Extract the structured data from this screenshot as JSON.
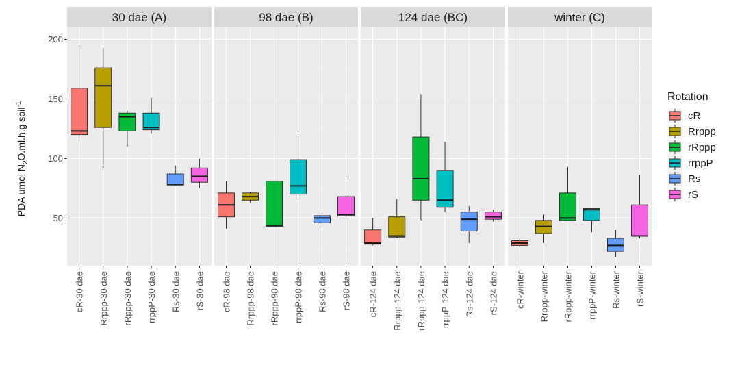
{
  "chart_data": {
    "type": "boxplot",
    "ylabel_parts": {
      "text1": "PDA  umol N",
      "sub1": "2",
      "text2": "O.ml.h.g soil",
      "sup1": "-1"
    },
    "ylim": [
      10,
      210
    ],
    "yticks": [
      50,
      100,
      150,
      200
    ],
    "legend": {
      "title": "Rotation",
      "position": "right",
      "entries": [
        {
          "label": "cR",
          "color": "#F8766D"
        },
        {
          "label": "Rrppp",
          "color": "#B79F00"
        },
        {
          "label": "rRppp",
          "color": "#00BA38"
        },
        {
          "label": "rrppP",
          "color": "#00BFC4"
        },
        {
          "label": "Rs",
          "color": "#619CFF"
        },
        {
          "label": "rS",
          "color": "#F564E3"
        }
      ]
    },
    "facets": [
      {
        "title": "30 dae (A)",
        "categories": [
          "cR-30 dae",
          "Rrppp-30 dae",
          "rRppp-30 dae",
          "rrppP-30 dae",
          "Rs-30 dae",
          "rS-30 dae"
        ],
        "boxes": [
          {
            "min": 117,
            "q1": 120,
            "median": 123,
            "q3": 159,
            "max": 196
          },
          {
            "min": 92,
            "q1": 126,
            "median": 161,
            "q3": 176,
            "max": 193
          },
          {
            "min": 110,
            "q1": 123,
            "median": 135,
            "q3": 138,
            "max": 140
          },
          {
            "min": 121,
            "q1": 124,
            "median": 126,
            "q3": 138,
            "max": 151
          },
          {
            "min": 77,
            "q1": 78,
            "median": 78,
            "q3": 87,
            "max": 94
          },
          {
            "min": 75,
            "q1": 80,
            "median": 85,
            "q3": 92,
            "max": 100
          }
        ]
      },
      {
        "title": "98 dae (B)",
        "categories": [
          "cR-98 dae",
          "Rrppp-98 dae",
          "rRppp-98 dae",
          "rrppP-98 dae",
          "Rs-98 dae",
          "rS-98 dae"
        ],
        "boxes": [
          {
            "min": 41,
            "q1": 51,
            "median": 61,
            "q3": 71,
            "max": 81
          },
          {
            "min": 63,
            "q1": 65,
            "median": 68,
            "q3": 71,
            "max": 72
          },
          {
            "min": 43,
            "q1": 43,
            "median": 44,
            "q3": 81,
            "max": 118
          },
          {
            "min": 65,
            "q1": 70,
            "median": 77,
            "q3": 99,
            "max": 121
          },
          {
            "min": 43,
            "q1": 46,
            "median": 50,
            "q3": 52,
            "max": 54
          },
          {
            "min": 51,
            "q1": 52,
            "median": 53,
            "q3": 68,
            "max": 83
          }
        ]
      },
      {
        "title": "124 dae (BC)",
        "categories": [
          "cR-124 dae",
          "Rrppp-124 dae",
          "rRppp-124 dae",
          "rrppP-124 dae",
          "Rs-124 dae",
          "rS-124 dae"
        ],
        "boxes": [
          {
            "min": 27,
            "q1": 28,
            "median": 29,
            "q3": 40,
            "max": 50
          },
          {
            "min": 33,
            "q1": 34,
            "median": 35,
            "q3": 51,
            "max": 66
          },
          {
            "min": 48,
            "q1": 65,
            "median": 83,
            "q3": 118,
            "max": 154
          },
          {
            "min": 55,
            "q1": 59,
            "median": 65,
            "q3": 90,
            "max": 114
          },
          {
            "min": 29,
            "q1": 39,
            "median": 49,
            "q3": 55,
            "max": 60
          },
          {
            "min": 47,
            "q1": 49,
            "median": 51,
            "q3": 55,
            "max": 57
          }
        ]
      },
      {
        "title": "winter (C)",
        "categories": [
          "cR-winter",
          "Rrppp-winter",
          "rRppp-winter",
          "rrppP-winter",
          "Rs-winter",
          "rS-winter"
        ],
        "boxes": [
          {
            "min": 26,
            "q1": 27,
            "median": 29,
            "q3": 31,
            "max": 33
          },
          {
            "min": 29,
            "q1": 37,
            "median": 43,
            "q3": 48,
            "max": 53
          },
          {
            "min": 48,
            "q1": 48,
            "median": 50,
            "q3": 71,
            "max": 93
          },
          {
            "min": 38,
            "q1": 48,
            "median": 57,
            "q3": 58,
            "max": 58
          },
          {
            "min": 17,
            "q1": 22,
            "median": 27,
            "q3": 33,
            "max": 40
          },
          {
            "min": 33,
            "q1": 35,
            "median": 35,
            "q3": 61,
            "max": 86
          }
        ]
      }
    ]
  }
}
